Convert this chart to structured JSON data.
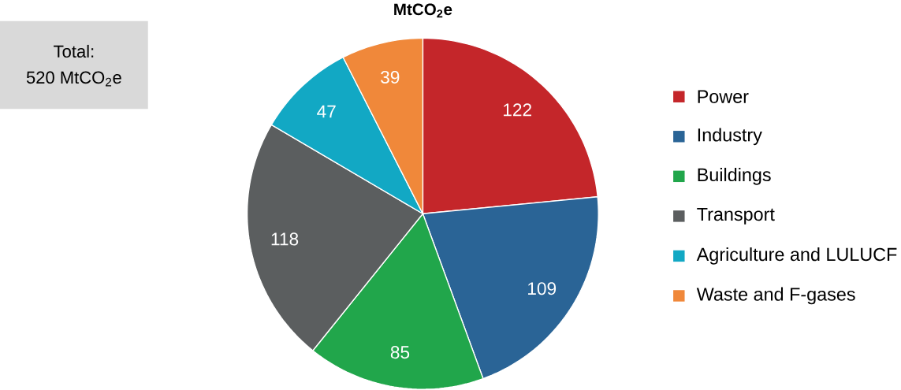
{
  "chart_data": {
    "type": "pie",
    "title": "**MtCO$_{2}$e**",
    "categories": [
      "Power",
      "Industry",
      "Buildings",
      "Transport",
      "Agriculture and LULUCF",
      "Waste and F-gases"
    ],
    "values": [
      122,
      109,
      85,
      118,
      47,
      39
    ],
    "colors": [
      "#c4262a",
      "#2a6496",
      "#21a64b",
      "#5b5e5f",
      "#12a8c4",
      "#f0883a"
    ],
    "data_labels": true,
    "legend": "right",
    "annotations": [
      "Total:",
      "520 MtCO$_{2}$e"
    ]
  }
}
